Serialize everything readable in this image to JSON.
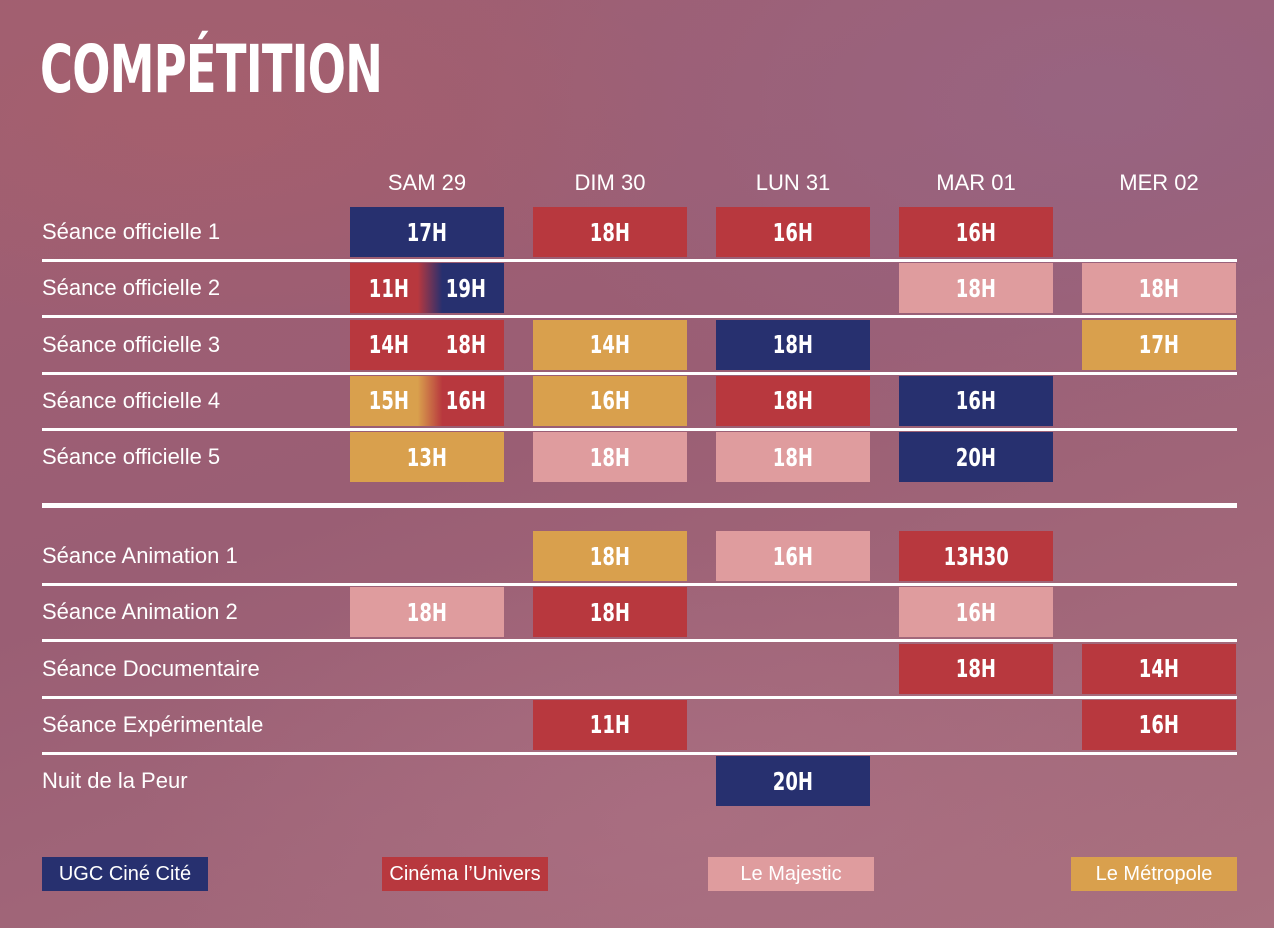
{
  "title": "COMPÉTITION",
  "days": [
    "SAM 29",
    "DIM 30",
    "LUN 31",
    "MAR 01",
    "MER 02"
  ],
  "colors": {
    "ugc": "#27306f",
    "univers": "#b8383e",
    "majestic": "#df9c9e",
    "metropole": "#d9a04d"
  },
  "groups": [
    {
      "rows": [
        {
          "label": "Séance officielle 1",
          "cells": [
            {
              "day": 0,
              "times": [
                {
                  "t": "17H",
                  "v": "ugc"
                }
              ]
            },
            {
              "day": 1,
              "times": [
                {
                  "t": "18H",
                  "v": "univers"
                }
              ]
            },
            {
              "day": 2,
              "times": [
                {
                  "t": "16H",
                  "v": "univers"
                }
              ]
            },
            {
              "day": 3,
              "times": [
                {
                  "t": "16H",
                  "v": "univers"
                }
              ]
            }
          ]
        },
        {
          "label": "Séance officielle 2",
          "cells": [
            {
              "day": 0,
              "times": [
                {
                  "t": "11H",
                  "v": "univers"
                },
                {
                  "t": "19H",
                  "v": "ugc"
                }
              ]
            },
            {
              "day": 3,
              "times": [
                {
                  "t": "18H",
                  "v": "majestic"
                }
              ]
            },
            {
              "day": 4,
              "times": [
                {
                  "t": "18H",
                  "v": "majestic"
                }
              ]
            }
          ]
        },
        {
          "label": "Séance officielle 3",
          "cells": [
            {
              "day": 0,
              "times": [
                {
                  "t": "14H",
                  "v": "univers"
                },
                {
                  "t": "18H",
                  "v": "univers"
                }
              ]
            },
            {
              "day": 1,
              "times": [
                {
                  "t": "14H",
                  "v": "metropole"
                }
              ]
            },
            {
              "day": 2,
              "times": [
                {
                  "t": "18H",
                  "v": "ugc"
                }
              ]
            },
            {
              "day": 4,
              "times": [
                {
                  "t": "17H",
                  "v": "metropole"
                }
              ]
            }
          ]
        },
        {
          "label": "Séance officielle 4",
          "cells": [
            {
              "day": 0,
              "times": [
                {
                  "t": "15H",
                  "v": "metropole"
                },
                {
                  "t": "16H",
                  "v": "univers"
                }
              ]
            },
            {
              "day": 1,
              "times": [
                {
                  "t": "16H",
                  "v": "metropole"
                }
              ]
            },
            {
              "day": 2,
              "times": [
                {
                  "t": "18H",
                  "v": "univers"
                }
              ]
            },
            {
              "day": 3,
              "times": [
                {
                  "t": "16H",
                  "v": "ugc"
                }
              ]
            }
          ]
        },
        {
          "label": "Séance officielle 5",
          "cells": [
            {
              "day": 0,
              "times": [
                {
                  "t": "13H",
                  "v": "metropole"
                }
              ]
            },
            {
              "day": 1,
              "times": [
                {
                  "t": "18H",
                  "v": "majestic"
                }
              ]
            },
            {
              "day": 2,
              "times": [
                {
                  "t": "18H",
                  "v": "majestic"
                }
              ]
            },
            {
              "day": 3,
              "times": [
                {
                  "t": "20H",
                  "v": "ugc"
                }
              ]
            }
          ]
        }
      ]
    },
    {
      "rows": [
        {
          "label": "Séance Animation 1",
          "cells": [
            {
              "day": 1,
              "times": [
                {
                  "t": "18H",
                  "v": "metropole"
                }
              ]
            },
            {
              "day": 2,
              "times": [
                {
                  "t": "16H",
                  "v": "majestic"
                }
              ]
            },
            {
              "day": 3,
              "times": [
                {
                  "t": "13H30",
                  "v": "univers"
                }
              ]
            }
          ]
        },
        {
          "label": "Séance Animation 2",
          "cells": [
            {
              "day": 0,
              "times": [
                {
                  "t": "18H",
                  "v": "majestic"
                }
              ]
            },
            {
              "day": 1,
              "times": [
                {
                  "t": "18H",
                  "v": "univers"
                }
              ]
            },
            {
              "day": 3,
              "times": [
                {
                  "t": "16H",
                  "v": "majestic"
                }
              ]
            }
          ]
        },
        {
          "label": "Séance Documentaire",
          "cells": [
            {
              "day": 3,
              "times": [
                {
                  "t": "18H",
                  "v": "univers"
                }
              ]
            },
            {
              "day": 4,
              "times": [
                {
                  "t": "14H",
                  "v": "univers"
                }
              ]
            }
          ]
        },
        {
          "label": "Séance Expérimentale",
          "cells": [
            {
              "day": 1,
              "times": [
                {
                  "t": "11H",
                  "v": "univers"
                }
              ]
            },
            {
              "day": 4,
              "times": [
                {
                  "t": "16H",
                  "v": "univers"
                }
              ]
            }
          ]
        },
        {
          "label": "Nuit de la Peur",
          "cells": [
            {
              "day": 2,
              "times": [
                {
                  "t": "20H",
                  "v": "ugc"
                }
              ]
            }
          ]
        }
      ]
    }
  ],
  "legend": [
    {
      "label": "UGC Ciné Cité",
      "v": "ugc"
    },
    {
      "label": "Cinéma l’Univers",
      "v": "univers"
    },
    {
      "label": "Le Majestic",
      "v": "majestic"
    },
    {
      "label": "Le Métropole",
      "v": "metropole"
    }
  ]
}
